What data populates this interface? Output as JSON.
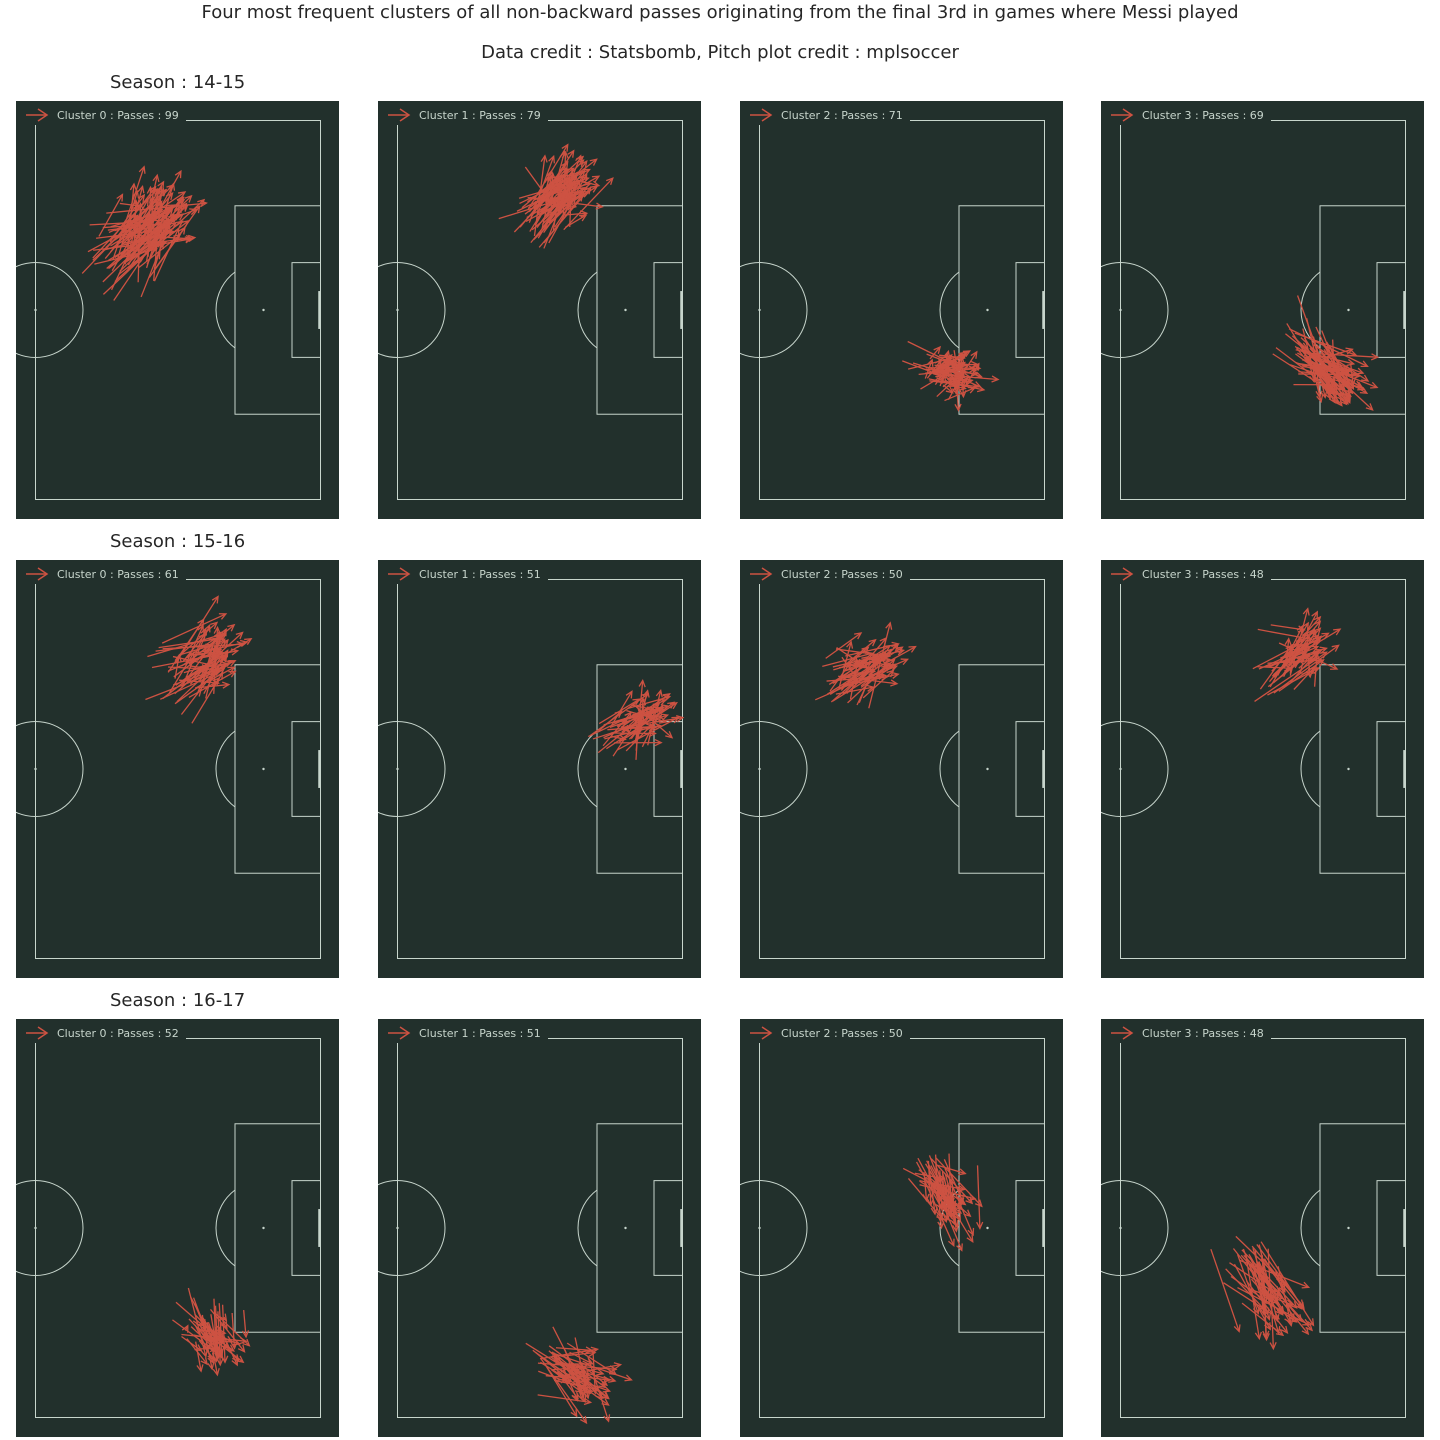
{
  "header": {
    "title": "Four most frequent clusters of all non-backward passes originating from the final 3rd in games where Messi played",
    "subtitle": "Data credit : Statsbomb, Pitch plot credit : mplsoccer"
  },
  "colors": {
    "pitch": "#22302c",
    "lines": "#c7d5cc",
    "arrow": "#cd5242",
    "text": "#262626"
  },
  "chart_data": [
    {
      "type": "scatter",
      "season": "Season : 14-15",
      "clusters": [
        {
          "legend": "Cluster 0 : Passes : 99",
          "passes": 99,
          "start_center": [
            79,
            28
          ],
          "end_center": [
            87,
            19
          ],
          "spread": [
            4,
            4
          ]
        },
        {
          "legend": "Cluster 1 : Passes : 79",
          "passes": 79,
          "start_center": [
            90,
            20
          ],
          "end_center": [
            97,
            13
          ],
          "spread": [
            3,
            3
          ]
        },
        {
          "legend": "Cluster 2 : Passes : 71",
          "passes": 71,
          "start_center": [
            98,
            53
          ],
          "end_center": [
            103,
            53
          ],
          "spread": [
            3,
            2.5
          ]
        },
        {
          "legend": "Cluster 3 : Passes : 69",
          "passes": 69,
          "start_center": [
            99,
            49
          ],
          "end_center": [
            107,
            55
          ],
          "spread": [
            3,
            3
          ]
        }
      ]
    },
    {
      "type": "scatter",
      "season": "Season : 15-16",
      "clusters": [
        {
          "legend": "Cluster 0 : Passes : 61",
          "passes": 61,
          "start_center": [
            91,
            21
          ],
          "end_center": [
            99,
            15
          ],
          "spread": [
            3,
            4
          ]
        },
        {
          "legend": "Cluster 1 : Passes : 51",
          "passes": 51,
          "start_center": [
            106,
            32
          ],
          "end_center": [
            113,
            28
          ],
          "spread": [
            3,
            3
          ]
        },
        {
          "legend": "Cluster 2 : Passes : 50",
          "passes": 50,
          "start_center": [
            78,
            21
          ],
          "end_center": [
            86,
            17
          ],
          "spread": [
            3,
            3
          ]
        },
        {
          "legend": "Cluster 3 : Passes : 48",
          "passes": 48,
          "start_center": [
            93,
            19
          ],
          "end_center": [
            101,
            14
          ],
          "spread": [
            3,
            3
          ]
        }
      ]
    },
    {
      "type": "scatter",
      "season": "Season : 16-17",
      "clusters": [
        {
          "legend": "Cluster 0 : Passes : 52",
          "passes": 52,
          "start_center": [
            96,
            60
          ],
          "end_center": [
            99,
            65
          ],
          "spread": [
            3,
            2.5
          ]
        },
        {
          "legend": "Cluster 1 : Passes : 51",
          "passes": 51,
          "start_center": [
            93,
            68
          ],
          "end_center": [
            101,
            73
          ],
          "spread": [
            3,
            3
          ]
        },
        {
          "legend": "Cluster 2 : Passes : 50",
          "passes": 50,
          "start_center": [
            97,
            28
          ],
          "end_center": [
            100,
            36
          ],
          "spread": [
            3,
            3
          ]
        },
        {
          "legend": "Cluster 3 : Passes : 48",
          "passes": 48,
          "start_center": [
            87,
            48
          ],
          "end_center": [
            94,
            58
          ],
          "spread": [
            3,
            3
          ]
        }
      ]
    }
  ]
}
